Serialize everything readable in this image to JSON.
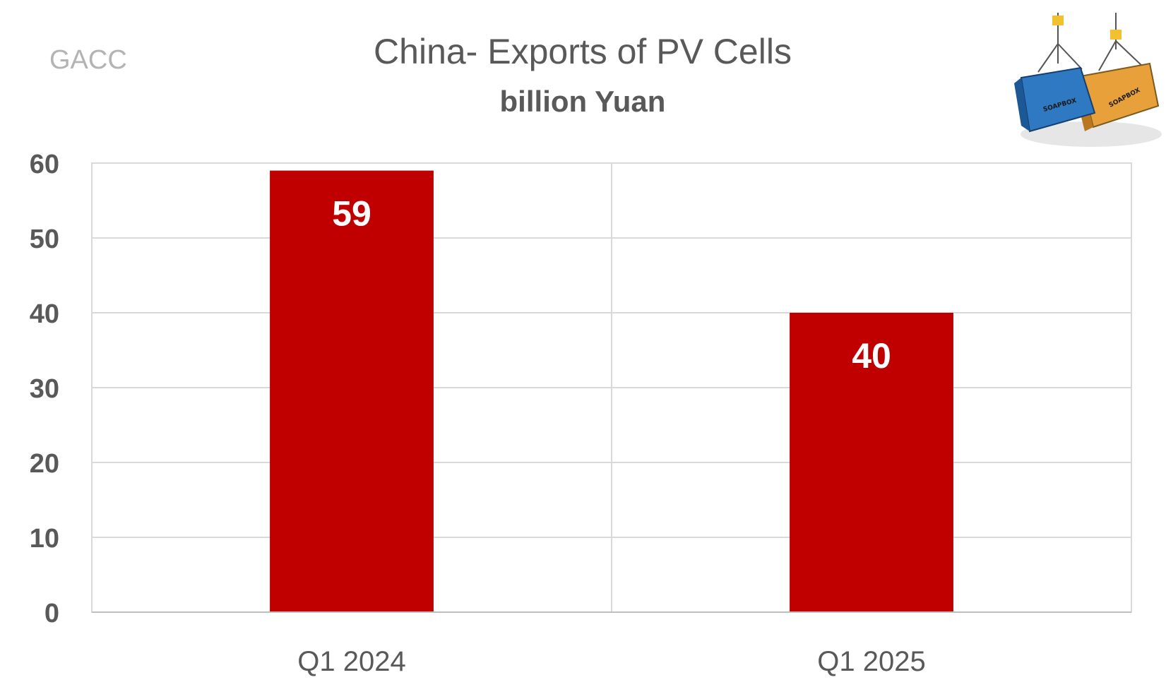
{
  "source": "GACC",
  "logo": {
    "icon": "shipping-containers-logo",
    "text_left": "SOAPBOX",
    "text_right": "SOAPBOX",
    "colors": {
      "blue": "#2f79c2",
      "orange": "#e8a13a"
    }
  },
  "chart_data": {
    "type": "bar",
    "title": "China- Exports of PV Cells",
    "subtitle": "billion Yuan",
    "categories": [
      "Q1 2024",
      "Q1 2025"
    ],
    "values": [
      59,
      40
    ],
    "data_labels": [
      "59",
      "40"
    ],
    "ylim": [
      0,
      60
    ],
    "yticks": [
      0,
      10,
      20,
      30,
      40,
      50,
      60
    ],
    "ytick_labels": [
      "0",
      "10",
      "20",
      "30",
      "40",
      "50",
      "60"
    ],
    "xlabel": "",
    "ylabel": "",
    "grid": true,
    "legend": "none",
    "colors": {
      "bar": "#c00000",
      "grid": "#d9d9d9",
      "text": "#595959"
    }
  }
}
